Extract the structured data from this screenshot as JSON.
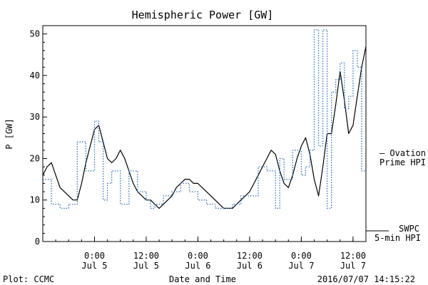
{
  "chart_data": {
    "type": "line",
    "title": "Hemispheric Power [GW]",
    "xlabel": "Date and Time",
    "ylabel": "P [GW]",
    "ylim": [
      0,
      52
    ],
    "y_ticks": [
      0,
      10,
      20,
      30,
      40,
      50
    ],
    "xlim": [
      "2016-07-04T12:00",
      "2016-07-07T15:00"
    ],
    "x_ticks": [
      {
        "x": "2016-07-05T00:00",
        "time": "0:00",
        "date": "Jul 5"
      },
      {
        "x": "2016-07-05T12:00",
        "time": "12:00",
        "date": "Jul 5"
      },
      {
        "x": "2016-07-06T00:00",
        "time": "0:00",
        "date": "Jul 6"
      },
      {
        "x": "2016-07-06T12:00",
        "time": "12:00",
        "date": "Jul 6"
      },
      {
        "x": "2016-07-07T00:00",
        "time": "0:00",
        "date": "Jul 7"
      },
      {
        "x": "2016-07-07T12:00",
        "time": "12:00",
        "date": "Jul 7"
      }
    ],
    "grid": false,
    "legend_position": "right",
    "series": [
      {
        "name": "SWPC 5-min HPI",
        "color": "#000000",
        "style": "solid",
        "step": false,
        "points": [
          [
            "2016-07-04T12:00",
            16
          ],
          [
            "2016-07-04T13:00",
            18
          ],
          [
            "2016-07-04T14:00",
            19
          ],
          [
            "2016-07-04T15:00",
            16
          ],
          [
            "2016-07-04T16:00",
            13
          ],
          [
            "2016-07-04T17:00",
            12
          ],
          [
            "2016-07-04T18:00",
            11
          ],
          [
            "2016-07-04T19:00",
            10
          ],
          [
            "2016-07-04T20:00",
            10
          ],
          [
            "2016-07-04T21:00",
            14
          ],
          [
            "2016-07-04T22:00",
            19
          ],
          [
            "2016-07-04T23:00",
            23
          ],
          [
            "2016-07-05T00:00",
            27
          ],
          [
            "2016-07-05T01:00",
            28
          ],
          [
            "2016-07-05T02:00",
            24
          ],
          [
            "2016-07-05T03:00",
            20
          ],
          [
            "2016-07-05T04:00",
            19
          ],
          [
            "2016-07-05T05:00",
            20
          ],
          [
            "2016-07-05T06:00",
            22
          ],
          [
            "2016-07-05T07:00",
            20
          ],
          [
            "2016-07-05T08:00",
            17
          ],
          [
            "2016-07-05T09:00",
            14
          ],
          [
            "2016-07-05T10:00",
            12
          ],
          [
            "2016-07-05T11:00",
            11
          ],
          [
            "2016-07-05T12:00",
            10
          ],
          [
            "2016-07-05T13:00",
            10
          ],
          [
            "2016-07-05T14:00",
            9
          ],
          [
            "2016-07-05T15:00",
            8
          ],
          [
            "2016-07-05T16:00",
            9
          ],
          [
            "2016-07-05T17:00",
            10
          ],
          [
            "2016-07-05T18:00",
            11
          ],
          [
            "2016-07-05T19:00",
            13
          ],
          [
            "2016-07-05T20:00",
            14
          ],
          [
            "2016-07-05T21:00",
            15
          ],
          [
            "2016-07-05T22:00",
            15
          ],
          [
            "2016-07-05T23:00",
            14
          ],
          [
            "2016-07-06T00:00",
            14
          ],
          [
            "2016-07-06T01:00",
            13
          ],
          [
            "2016-07-06T02:00",
            12
          ],
          [
            "2016-07-06T03:00",
            11
          ],
          [
            "2016-07-06T04:00",
            10
          ],
          [
            "2016-07-06T05:00",
            9
          ],
          [
            "2016-07-06T06:00",
            8
          ],
          [
            "2016-07-06T07:00",
            8
          ],
          [
            "2016-07-06T08:00",
            8
          ],
          [
            "2016-07-06T09:00",
            9
          ],
          [
            "2016-07-06T10:00",
            10
          ],
          [
            "2016-07-06T11:00",
            11
          ],
          [
            "2016-07-06T12:00",
            12
          ],
          [
            "2016-07-06T13:00",
            14
          ],
          [
            "2016-07-06T14:00",
            16
          ],
          [
            "2016-07-06T15:00",
            18
          ],
          [
            "2016-07-06T16:00",
            20
          ],
          [
            "2016-07-06T17:00",
            22
          ],
          [
            "2016-07-06T18:00",
            21
          ],
          [
            "2016-07-06T19:00",
            17
          ],
          [
            "2016-07-06T20:00",
            14
          ],
          [
            "2016-07-06T21:00",
            13
          ],
          [
            "2016-07-06T22:00",
            16
          ],
          [
            "2016-07-06T23:00",
            20
          ],
          [
            "2016-07-07T00:00",
            23
          ],
          [
            "2016-07-07T01:00",
            25
          ],
          [
            "2016-07-07T02:00",
            21
          ],
          [
            "2016-07-07T03:00",
            15
          ],
          [
            "2016-07-07T04:00",
            11
          ],
          [
            "2016-07-07T05:00",
            18
          ],
          [
            "2016-07-07T06:00",
            26
          ],
          [
            "2016-07-07T07:00",
            26
          ],
          [
            "2016-07-07T08:00",
            33
          ],
          [
            "2016-07-07T09:00",
            41
          ],
          [
            "2016-07-07T10:00",
            34
          ],
          [
            "2016-07-07T11:00",
            26
          ],
          [
            "2016-07-07T12:00",
            28
          ],
          [
            "2016-07-07T13:00",
            35
          ],
          [
            "2016-07-07T14:00",
            42
          ],
          [
            "2016-07-07T15:00",
            47
          ]
        ]
      },
      {
        "name": "Ovation Prime HPI",
        "color": "#2f6fc0",
        "style": "dotted",
        "step": true,
        "points": [
          [
            "2016-07-04T12:00",
            15
          ],
          [
            "2016-07-04T14:00",
            9
          ],
          [
            "2016-07-04T16:00",
            8
          ],
          [
            "2016-07-04T18:00",
            9
          ],
          [
            "2016-07-04T20:00",
            24
          ],
          [
            "2016-07-04T22:00",
            17
          ],
          [
            "2016-07-05T00:00",
            29
          ],
          [
            "2016-07-05T01:00",
            24
          ],
          [
            "2016-07-05T02:00",
            10
          ],
          [
            "2016-07-05T03:00",
            14
          ],
          [
            "2016-07-05T04:00",
            17
          ],
          [
            "2016-07-05T06:00",
            9
          ],
          [
            "2016-07-05T08:00",
            17
          ],
          [
            "2016-07-05T10:00",
            12
          ],
          [
            "2016-07-05T12:00",
            10
          ],
          [
            "2016-07-05T13:00",
            8
          ],
          [
            "2016-07-05T14:00",
            9
          ],
          [
            "2016-07-05T16:00",
            11
          ],
          [
            "2016-07-05T18:00",
            12
          ],
          [
            "2016-07-05T20:00",
            14
          ],
          [
            "2016-07-05T22:00",
            12
          ],
          [
            "2016-07-06T00:00",
            10
          ],
          [
            "2016-07-06T02:00",
            9
          ],
          [
            "2016-07-06T04:00",
            8
          ],
          [
            "2016-07-06T06:00",
            8
          ],
          [
            "2016-07-06T08:00",
            9
          ],
          [
            "2016-07-06T10:00",
            11
          ],
          [
            "2016-07-06T12:00",
            11
          ],
          [
            "2016-07-06T14:00",
            18
          ],
          [
            "2016-07-06T16:00",
            17
          ],
          [
            "2016-07-06T18:00",
            8
          ],
          [
            "2016-07-06T19:00",
            20
          ],
          [
            "2016-07-06T20:00",
            15
          ],
          [
            "2016-07-06T22:00",
            22
          ],
          [
            "2016-07-07T00:00",
            16
          ],
          [
            "2016-07-07T01:00",
            18
          ],
          [
            "2016-07-07T02:00",
            22
          ],
          [
            "2016-07-07T03:00",
            51
          ],
          [
            "2016-07-07T04:00",
            23
          ],
          [
            "2016-07-07T05:00",
            51
          ],
          [
            "2016-07-07T06:00",
            8
          ],
          [
            "2016-07-07T07:00",
            36
          ],
          [
            "2016-07-07T08:00",
            39
          ],
          [
            "2016-07-07T09:00",
            43
          ],
          [
            "2016-07-07T10:00",
            32
          ],
          [
            "2016-07-07T11:00",
            35
          ],
          [
            "2016-07-07T12:00",
            46
          ],
          [
            "2016-07-07T13:00",
            42
          ],
          [
            "2016-07-07T14:00",
            17
          ],
          [
            "2016-07-07T15:00",
            17
          ]
        ]
      }
    ],
    "legend": {
      "ovation": {
        "line1": "— Ovation",
        "line2": "Prime HPI"
      },
      "swpc": {
        "line1": "SWPC",
        "line2": "5-min HPI"
      }
    }
  },
  "footer": {
    "left": "Plot: CCMC",
    "right": "2016/07/07 14:15:22"
  }
}
